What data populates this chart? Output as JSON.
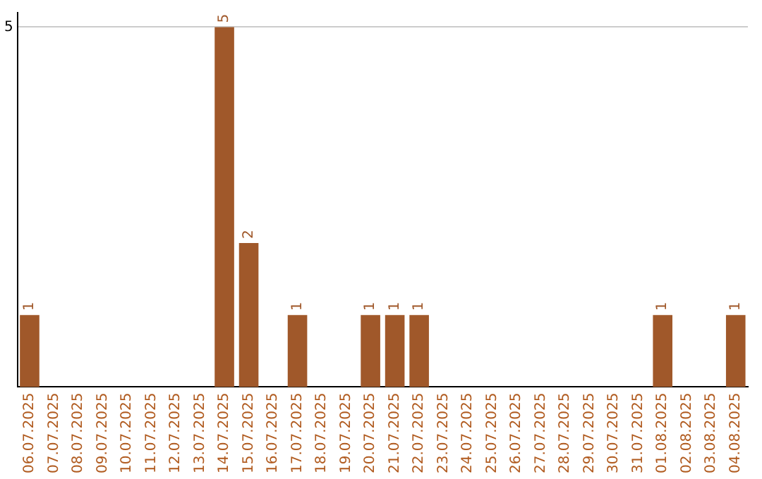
{
  "chart_data": {
    "type": "bar",
    "categories": [
      "06.07.2025",
      "07.07.2025",
      "08.07.2025",
      "09.07.2025",
      "10.07.2025",
      "11.07.2025",
      "12.07.2025",
      "13.07.2025",
      "14.07.2025",
      "15.07.2025",
      "16.07.2025",
      "17.07.2025",
      "18.07.2025",
      "19.07.2025",
      "20.07.2025",
      "21.07.2025",
      "22.07.2025",
      "23.07.2025",
      "24.07.2025",
      "25.07.2025",
      "26.07.2025",
      "27.07.2025",
      "28.07.2025",
      "29.07.2025",
      "30.07.2025",
      "31.07.2025",
      "01.08.2025",
      "02.08.2025",
      "03.08.2025",
      "04.08.2025"
    ],
    "values": [
      1,
      0,
      0,
      0,
      0,
      0,
      0,
      0,
      5,
      2,
      0,
      1,
      0,
      0,
      1,
      1,
      1,
      0,
      0,
      0,
      0,
      0,
      0,
      0,
      0,
      0,
      1,
      0,
      0,
      1
    ],
    "value_labels": [
      "1",
      null,
      null,
      null,
      null,
      null,
      null,
      null,
      "5",
      "2",
      null,
      "1",
      null,
      null,
      "1",
      "1",
      "1",
      null,
      null,
      null,
      null,
      null,
      null,
      null,
      null,
      null,
      "1",
      null,
      null,
      "1"
    ],
    "color": "#a0582a",
    "ylim": [
      0,
      5.2
    ],
    "yticks": [
      5
    ],
    "grid": "y",
    "legend": false
  }
}
